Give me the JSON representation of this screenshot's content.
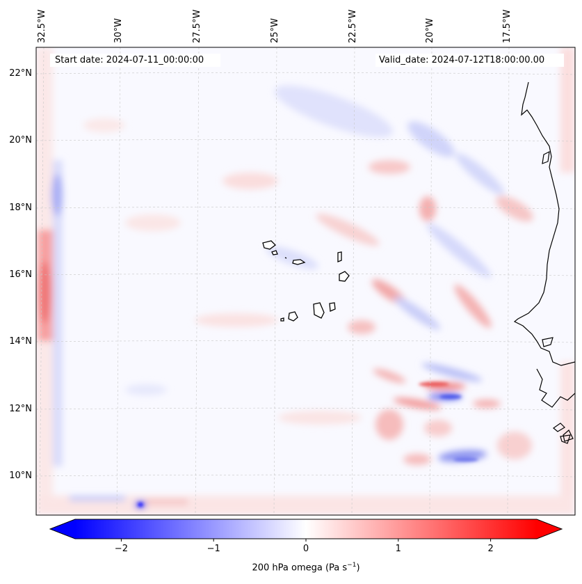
{
  "map": {
    "start_label": "Start date: 2024-07-11_00:00:00",
    "valid_label": "Valid_date: 2024-07-12T18:00:00.00",
    "lon_labels": [
      "32.5°W",
      "30°W",
      "27.5°W",
      "25°W",
      "22.5°W",
      "20°W",
      "17.5°W"
    ],
    "lat_labels": [
      "22°N",
      "20°N",
      "18°N",
      "16°N",
      "14°N",
      "12°N",
      "10°N"
    ],
    "colormap": [
      "#0000ff",
      "#ffffff",
      "#ff0000"
    ]
  },
  "colorbar": {
    "ticks": [
      "−2",
      "−1",
      "0",
      "1",
      "2"
    ],
    "tick_values": [
      -2,
      -1,
      0,
      1,
      2
    ],
    "range": [
      -2.5,
      2.5
    ],
    "label_prefix": "200 hPa omega (Pa s",
    "label_exp": "−1",
    "label_suffix": ")"
  }
}
